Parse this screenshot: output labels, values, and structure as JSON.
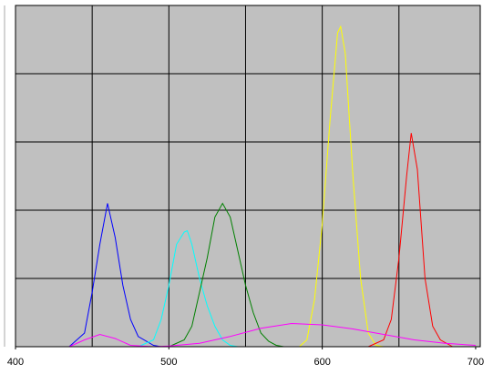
{
  "chart_data": {
    "type": "line",
    "xlim": [
      400,
      703
    ],
    "ylim": [
      0,
      5
    ],
    "xticks": [
      400,
      500,
      600,
      700
    ],
    "xgrid": [
      450,
      500,
      550,
      600,
      650
    ],
    "ygrid": [
      1,
      2,
      3,
      4
    ],
    "background": "#c0c0c0",
    "series": [
      {
        "color": "#0000ff",
        "x": [
          435,
          445,
          450,
          455,
          460,
          465,
          470,
          475,
          480,
          490,
          495
        ],
        "values": [
          0,
          0.2,
          0.8,
          1.5,
          2.1,
          1.6,
          0.9,
          0.4,
          0.15,
          0.02,
          0
        ]
      },
      {
        "color": "#00ffff",
        "x": [
          480,
          490,
          495,
          500,
          505,
          510,
          512,
          515,
          520,
          525,
          530,
          535,
          540,
          545
        ],
        "values": [
          0,
          0.1,
          0.4,
          0.9,
          1.5,
          1.68,
          1.7,
          1.5,
          1.0,
          0.6,
          0.3,
          0.1,
          0.02,
          0
        ]
      },
      {
        "color": "#008000",
        "x": [
          500,
          510,
          515,
          520,
          525,
          530,
          535,
          540,
          545,
          550,
          555,
          560,
          565,
          570,
          575
        ],
        "values": [
          0,
          0.1,
          0.3,
          0.8,
          1.3,
          1.9,
          2.1,
          1.9,
          1.4,
          0.9,
          0.5,
          0.2,
          0.08,
          0.02,
          0
        ]
      },
      {
        "color": "#ffff00",
        "x": [
          585,
          590,
          595,
          600,
          605,
          610,
          612,
          615,
          620,
          625,
          630,
          635,
          640
        ],
        "values": [
          0,
          0.1,
          0.7,
          1.8,
          3.3,
          4.6,
          4.69,
          4.3,
          2.5,
          1.0,
          0.2,
          0.02,
          0
        ]
      },
      {
        "color": "#ff0000",
        "x": [
          630,
          640,
          645,
          650,
          655,
          658,
          662,
          667,
          672,
          677,
          685
        ],
        "values": [
          0,
          0.1,
          0.4,
          1.3,
          2.5,
          3.13,
          2.6,
          1.0,
          0.3,
          0.1,
          0
        ]
      },
      {
        "color": "#ff00ff",
        "x": [
          435,
          445,
          455,
          465,
          475,
          490,
          500,
          520,
          540,
          560,
          580,
          600,
          620,
          640,
          660,
          680,
          700
        ],
        "values": [
          0,
          0.1,
          0.18,
          0.12,
          0.02,
          0,
          0.01,
          0.05,
          0.15,
          0.27,
          0.34,
          0.32,
          0.26,
          0.18,
          0.1,
          0.05,
          0.02
        ]
      }
    ]
  }
}
